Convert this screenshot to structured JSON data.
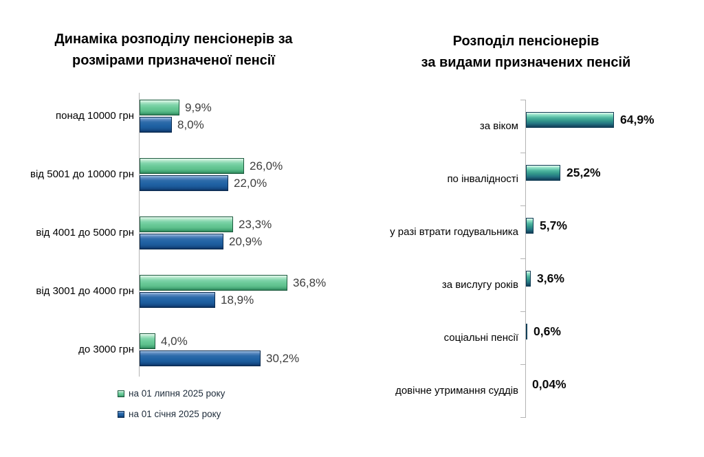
{
  "page": {
    "background": "#ffffff"
  },
  "legend": {
    "items": [
      {
        "label": "на 01 липня 2025 року",
        "color": "#66c795"
      },
      {
        "label": "на 01 січня 2025 року",
        "color": "#1f60a2"
      }
    ]
  },
  "chart_data": [
    {
      "type": "bar",
      "orientation": "horizontal",
      "title": "Динаміка розподілу пенсіонерів за розмірами призначеної пенсії",
      "title_lines": [
        "Динаміка розподілу пенсіонерів за",
        "розмірами призначеної пенсії"
      ],
      "categories": [
        "понад 10000 грн",
        "від 5001 до 10000 грн",
        "від 4001 до 5000 грн",
        "від 3001 до 4000 грн",
        "до 3000 грн"
      ],
      "series": [
        {
          "name": "на 01 липня 2025 року",
          "color": "#66c795",
          "values": [
            9.9,
            26.0,
            23.3,
            36.8,
            4.0
          ],
          "labels": [
            "9,9%",
            "26,0%",
            "23,3%",
            "36,8%",
            "4,0%"
          ]
        },
        {
          "name": "на 01 січня 2025 року",
          "color": "#1f60a2",
          "values": [
            8.0,
            22.0,
            20.9,
            18.9,
            30.2
          ],
          "labels": [
            "8,0%",
            "22,0%",
            "20,9%",
            "18,9%",
            "30,2%"
          ]
        }
      ],
      "xlim": [
        0,
        40
      ],
      "grid": false,
      "value_axis_labels": "none",
      "legend_position": "bottom"
    },
    {
      "type": "bar",
      "orientation": "horizontal",
      "title": "Розподіл пенсіонерів за видами призначених пенсій",
      "title_lines": [
        "Розподіл пенсіонерів",
        "за видами призначених пенсій"
      ],
      "categories": [
        "за віком",
        "по інвалідності",
        "у разі втрати годувальника",
        "за вислугу років",
        "соціальні пенсії",
        "довічне утримання суддів"
      ],
      "values": [
        64.9,
        25.2,
        5.7,
        3.6,
        0.6,
        0.04
      ],
      "labels": [
        "64,9%",
        "25,2%",
        "5,7%",
        "3,6%",
        "0,6%",
        "0,04%"
      ],
      "color": "#35a08d",
      "xlim": [
        0,
        70
      ],
      "grid": false,
      "value_axis_labels": "none",
      "legend_position": "none"
    }
  ]
}
